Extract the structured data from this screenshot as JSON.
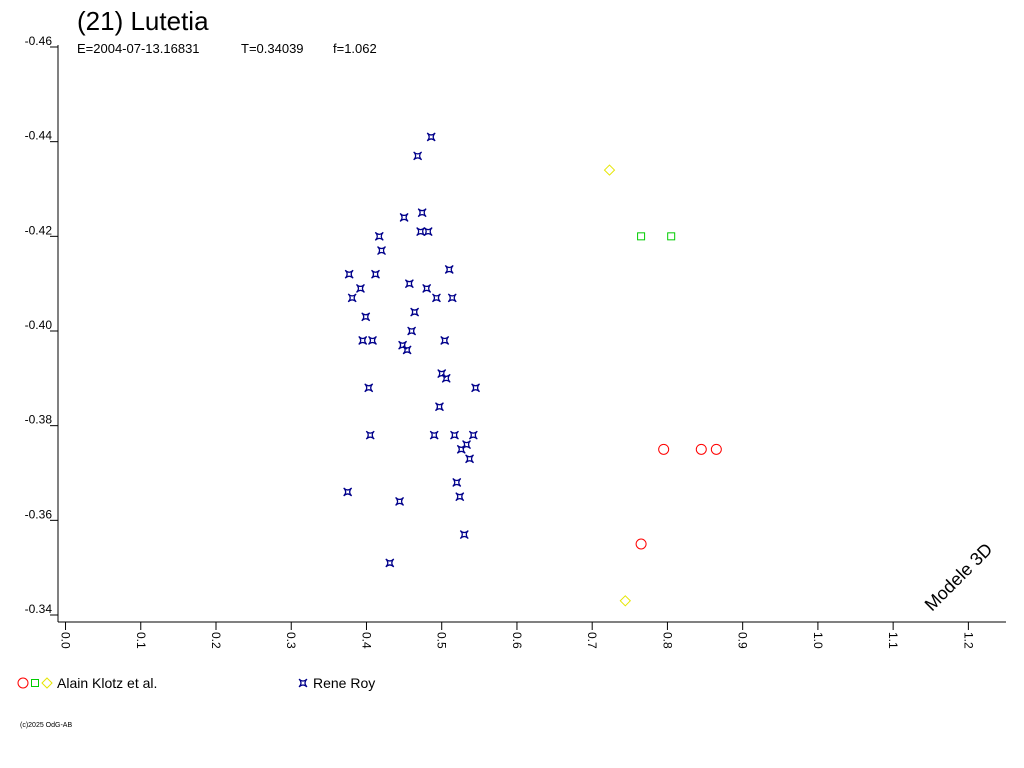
{
  "chart_data": {
    "type": "scatter",
    "title": "(21) Lutetia",
    "subtitle": [
      "E=2004-07-13.16831",
      "T=0.34039",
      "f=1.062"
    ],
    "annotation": "Modele 3D",
    "footer": "(c)2025 OdG-AB",
    "xlim": [
      -0.01,
      1.25
    ],
    "ylim": [
      -0.34,
      -0.46
    ],
    "xticks": [
      {
        "value": 0,
        "label": "0.0"
      },
      0.1,
      0.2,
      0.3,
      0.4,
      0.5,
      0.6,
      0.7,
      0.8,
      0.9,
      {
        "value": 1,
        "label": "1.0"
      },
      1.1,
      1.2
    ],
    "yticks": [
      -0.46,
      -0.44,
      -0.42,
      {
        "value": -0.4,
        "label": "-0.40"
      },
      -0.38,
      -0.36,
      -0.34
    ],
    "series": [
      {
        "name": "Alain Klotz et al.",
        "groups": [
          {
            "marker": "circle",
            "color": "#ff0000",
            "x": [
              0.795,
              0.845,
              0.865,
              0.765
            ],
            "values": [
              -0.375,
              -0.375,
              -0.375,
              -0.355
            ]
          },
          {
            "marker": "square",
            "color": "#00cc00",
            "x": [
              0.765,
              0.805
            ],
            "values": [
              -0.42,
              -0.42
            ]
          },
          {
            "marker": "diamond",
            "color": "#e6e600",
            "x": [
              0.723,
              0.744
            ],
            "values": [
              -0.434,
              -0.343
            ]
          }
        ]
      },
      {
        "name": "Rene Roy",
        "groups": [
          {
            "marker": "star",
            "color": "#00008b",
            "x": [
              0.486,
              0.468,
              0.45,
              0.474,
              0.472,
              0.482,
              0.417,
              0.42,
              0.377,
              0.412,
              0.51,
              0.457,
              0.48,
              0.392,
              0.493,
              0.514,
              0.381,
              0.464,
              0.399,
              0.46,
              0.408,
              0.504,
              0.395,
              0.448,
              0.454,
              0.5,
              0.506,
              0.403,
              0.545,
              0.497,
              0.405,
              0.49,
              0.517,
              0.542,
              0.533,
              0.526,
              0.537,
              0.52,
              0.375,
              0.524,
              0.444,
              0.53,
              0.431
            ],
            "values": [
              -0.441,
              -0.437,
              -0.424,
              -0.425,
              -0.421,
              -0.421,
              -0.42,
              -0.417,
              -0.412,
              -0.412,
              -0.413,
              -0.41,
              -0.409,
              -0.409,
              -0.407,
              -0.407,
              -0.407,
              -0.404,
              -0.403,
              -0.4,
              -0.398,
              -0.398,
              -0.398,
              -0.397,
              -0.396,
              -0.391,
              -0.39,
              -0.388,
              -0.388,
              -0.384,
              -0.378,
              -0.378,
              -0.378,
              -0.378,
              -0.376,
              -0.375,
              -0.373,
              -0.368,
              -0.366,
              -0.365,
              -0.364,
              -0.357,
              -0.351
            ]
          }
        ]
      }
    ]
  }
}
